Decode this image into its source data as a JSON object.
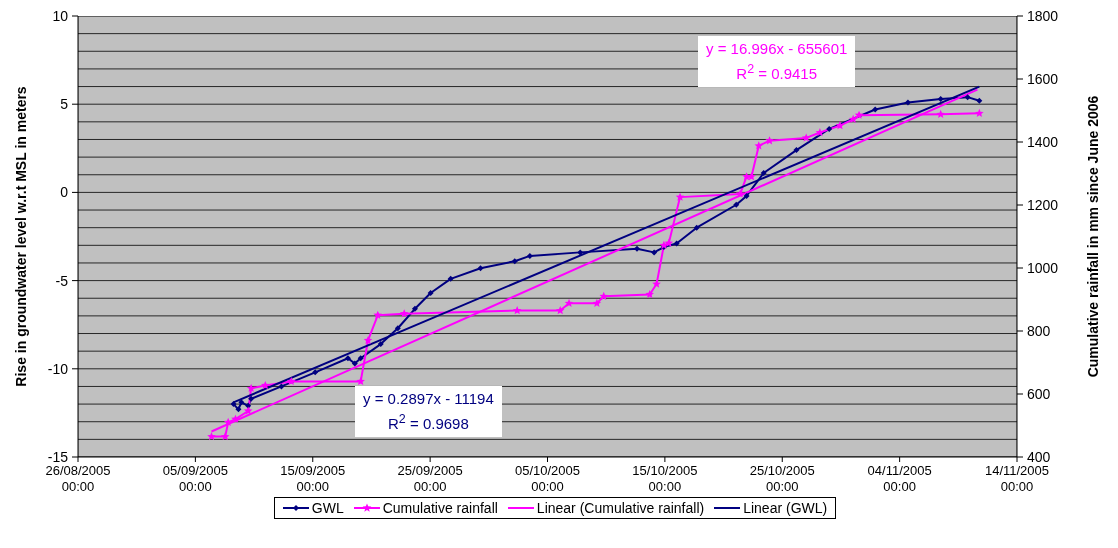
{
  "chart_data": {
    "type": "line",
    "ylabel": "Rise in groundwater level w.r.t MSL in meters",
    "y2label": "Cumulative rainfall in mm since June 2006",
    "xlim": [
      "2005-08-26",
      "2005-11-14"
    ],
    "xticks": [
      {
        "value": "2005-08-26",
        "label": "26/08/2005 00:00"
      },
      {
        "value": "2005-09-05",
        "label": "05/09/2005 00:00"
      },
      {
        "value": "2005-09-15",
        "label": "15/09/2005 00:00"
      },
      {
        "value": "2005-09-25",
        "label": "25/09/2005 00:00"
      },
      {
        "value": "2005-10-05",
        "label": "05/10/2005 00:00"
      },
      {
        "value": "2005-10-15",
        "label": "15/10/2005 00:00"
      },
      {
        "value": "2005-10-25",
        "label": "25/10/2005 00:00"
      },
      {
        "value": "2005-11-04",
        "label": "04/11/2005 00:00"
      },
      {
        "value": "2005-11-14",
        "label": "14/11/2005 00:00"
      }
    ],
    "ylim": [
      -15,
      10
    ],
    "yticks": [
      -15,
      {
        "value": -14,
        "label": null
      },
      {
        "value": -13,
        "label": null
      },
      {
        "value": -12,
        "label": null
      },
      {
        "value": -11,
        "label": null
      },
      -10,
      {
        "value": -9,
        "label": null
      },
      {
        "value": -8,
        "label": null
      },
      {
        "value": -7,
        "label": null
      },
      {
        "value": -6,
        "label": null
      },
      -5,
      {
        "value": -4,
        "label": null
      },
      {
        "value": -3,
        "label": null
      },
      {
        "value": -2,
        "label": null
      },
      {
        "value": -1,
        "label": null
      },
      0,
      {
        "value": 1,
        "label": null
      },
      {
        "value": 2,
        "label": null
      },
      {
        "value": 3,
        "label": null
      },
      {
        "value": 4,
        "label": null
      },
      5,
      {
        "value": 6,
        "label": null
      },
      {
        "value": 7,
        "label": null
      },
      {
        "value": 8,
        "label": null
      },
      {
        "value": 9,
        "label": null
      },
      10
    ],
    "y2lim": [
      400,
      1800
    ],
    "y2ticks": [
      400,
      600,
      800,
      1000,
      1200,
      1400,
      1600,
      1800
    ],
    "grid": "y",
    "legend": "bottom",
    "line_style": "solid",
    "annotations": [
      "y = 16.996x - 655601\nR$^{2}$ = 0.9415",
      "y = 0.2897x - 11194\nR$^{2}$ = 0.9698"
    ],
    "series": [
      {
        "name": "GWL",
        "color": "#000080",
        "marker": "diamond",
        "x": [
          "2005-09-08T06:00",
          "2005-09-08T16:00",
          "2005-09-08T22:00",
          "2005-09-09T12:00",
          "2005-09-09T18:00",
          "2005-09-12T08:00",
          "2005-09-15T05:00",
          "2005-09-18T00:00",
          "2005-09-18T14:00",
          "2005-09-19T02:00",
          "2005-09-20T19:00",
          "2005-09-22T06:00",
          "2005-09-23T17:00",
          "2005-09-25T01:00",
          "2005-09-26T18:00",
          "2005-09-29T07:00",
          "2005-10-02T05:00",
          "2005-10-03T12:00",
          "2005-10-07T19:00",
          "2005-10-12T15:00",
          "2005-10-14T02:00",
          "2005-10-14T22:00",
          "2005-10-16T00:00",
          "2005-10-17T17:00",
          "2005-10-21T02:00",
          "2005-10-21T23:00",
          "2005-10-23T10:00",
          "2005-10-26T05:00",
          "2005-10-29T00:00",
          "2005-11-01T22:00",
          "2005-11-04T17:00",
          "2005-11-07T12:00",
          "2005-11-09T19:00",
          "2005-11-10T19:00"
        ],
        "values": [
          -12.0,
          -12.3,
          -11.9,
          -12.1,
          -11.7,
          -11.0,
          -10.2,
          -9.4,
          -9.7,
          -9.4,
          -8.6,
          -7.7,
          -6.6,
          -5.7,
          -4.9,
          -4.3,
          -3.9,
          -3.6,
          -3.4,
          -3.2,
          -3.4,
          -3.1,
          -2.9,
          -2.0,
          -0.7,
          -0.2,
          1.1,
          2.4,
          3.6,
          4.7,
          5.1,
          5.3,
          5.4,
          5.2
        ]
      },
      {
        "name": "Cumulative rainfall",
        "color": "#ff00ff",
        "marker": "star",
        "axis": "y2",
        "x": [
          "2005-09-06T09:00",
          "2005-09-07T13:00",
          "2005-09-07T19:00",
          "2005-09-08T10:00",
          "2005-09-09T12:00",
          "2005-09-09T18:00",
          "2005-09-10T23:00",
          "2005-09-13T04:00",
          "2005-09-19T02:00",
          "2005-09-19T17:00",
          "2005-09-20T13:00",
          "2005-09-22T19:00",
          "2005-10-02T10:00",
          "2005-10-06T02:00",
          "2005-10-06T20:00",
          "2005-10-09T05:00",
          "2005-10-09T19:00",
          "2005-10-13T17:00",
          "2005-10-14T07:00",
          "2005-10-14T22:00",
          "2005-10-15T08:00",
          "2005-10-16T07:00",
          "2005-10-21T10:00",
          "2005-10-21T23:00",
          "2005-10-22T09:00",
          "2005-10-23T00:00",
          "2005-10-23T22:00",
          "2005-10-27T01:00",
          "2005-10-28T05:00",
          "2005-10-29T22:00",
          "2005-10-31T01:00",
          "2005-10-31T13:00",
          "2005-11-07T12:00",
          "2005-11-10T19:00"
        ],
        "values": [
          465,
          465,
          510,
          520,
          546,
          618,
          627,
          640,
          640,
          770,
          850,
          855,
          865,
          865,
          888,
          888,
          910,
          916,
          949,
          1072,
          1079,
          1225,
          1235,
          1290,
          1290,
          1388,
          1404,
          1413,
          1430,
          1452,
          1472,
          1485,
          1488,
          1491
        ]
      },
      {
        "name": "Linear (Cumulative rainfall)",
        "color": "#ff00ff",
        "marker": "none",
        "axis": "y2",
        "x": [
          "2005-09-06T09:00",
          "2005-11-10T15:00"
        ],
        "values": [
          481,
          1566
        ]
      },
      {
        "name": "Linear (GWL)",
        "color": "#000080",
        "marker": "none",
        "x": [
          "2005-09-08T06:00",
          "2005-11-10T19:00"
        ],
        "values": [
          -11.9,
          6.0
        ]
      }
    ]
  }
}
